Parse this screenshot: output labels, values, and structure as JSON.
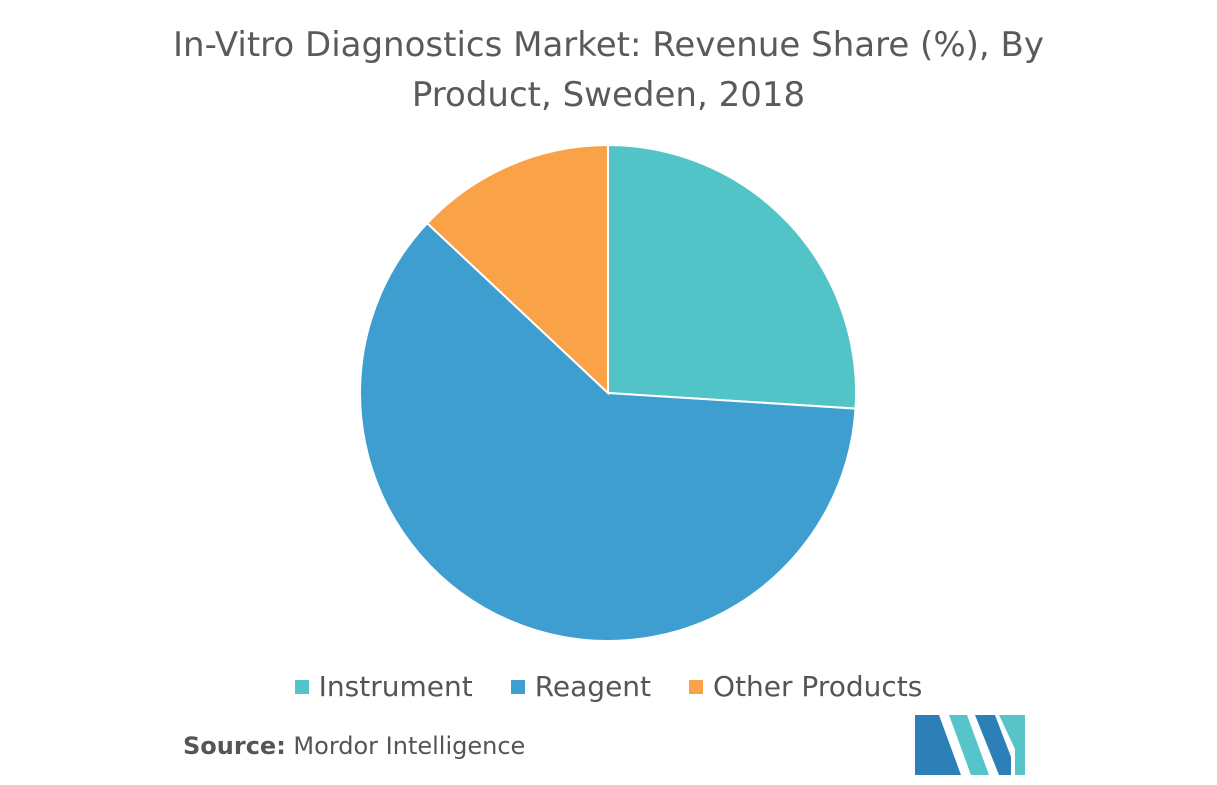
{
  "title_line1": "In-Vitro Diagnostics Market: Revenue Share (%), By",
  "title_line2": "Product, Sweden, 2018",
  "source_label": "Source:",
  "source_text": " Mordor Intelligence",
  "colors": {
    "instrument": "#52c3c6",
    "reagent": "#3f9ed0",
    "other": "#f9a248",
    "logo_dark": "#2d7fb8",
    "logo_light": "#56c4c9"
  },
  "chart_data": {
    "type": "pie",
    "title": "In-Vitro Diagnostics Market: Revenue Share (%), By Product, Sweden, 2018",
    "categories": [
      "Instrument",
      "Reagent",
      "Other Products"
    ],
    "values": [
      26,
      61,
      13
    ],
    "legend_position": "bottom"
  }
}
